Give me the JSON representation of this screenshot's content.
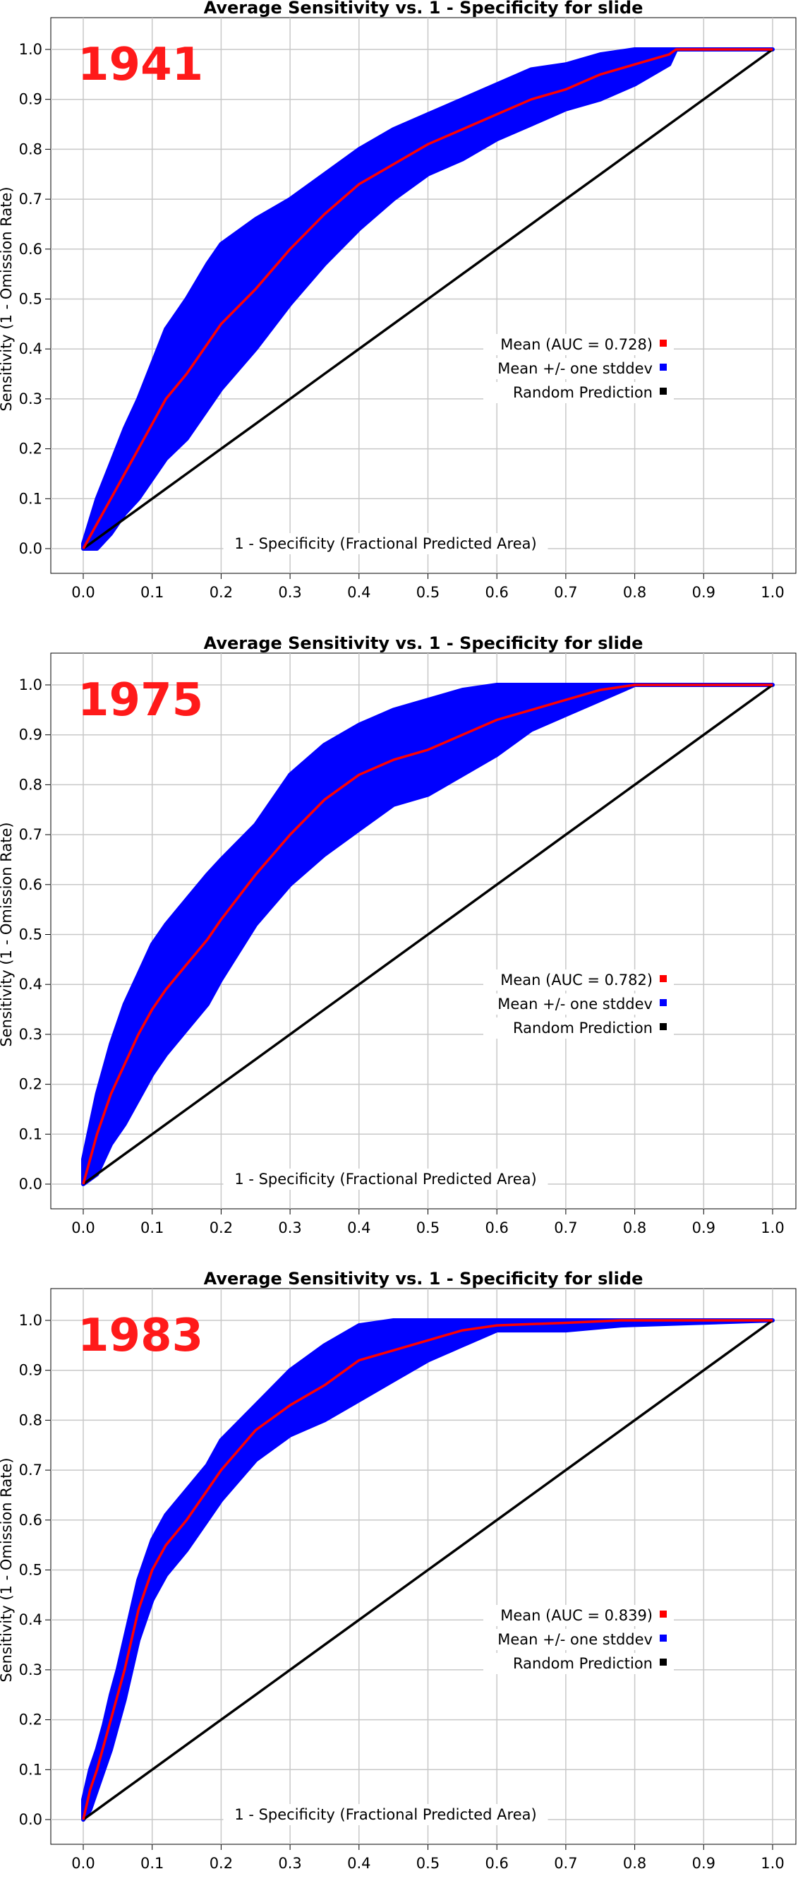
{
  "legend_colors": {
    "mean": "#ff0000",
    "band": "#0000ff",
    "random": "#000000"
  },
  "chart_data": [
    {
      "type": "line",
      "title": "Average Sensitivity vs. 1 - Specificity for slide",
      "year_label": "1941",
      "xlabel": "1 - Specificity (Fractional Predicted Area)",
      "ylabel": "Sensitivity (1 - Omission Rate)",
      "xlim": [
        0,
        1
      ],
      "ylim": [
        0,
        1
      ],
      "grid": true,
      "legend_position": "center-right",
      "x_ticks": [
        "0.0",
        "0.1",
        "0.2",
        "0.3",
        "0.4",
        "0.5",
        "0.6",
        "0.7",
        "0.8",
        "0.9",
        "1.0"
      ],
      "y_ticks": [
        "0.0",
        "0.1",
        "0.2",
        "0.3",
        "0.4",
        "0.5",
        "0.6",
        "0.7",
        "0.8",
        "0.9",
        "1.0"
      ],
      "legend": [
        "Mean (AUC = 0.728)",
        "Mean +/- one stddev",
        "Random Prediction"
      ],
      "x": [
        0,
        0.02,
        0.04,
        0.06,
        0.08,
        0.1,
        0.12,
        0.15,
        0.18,
        0.2,
        0.25,
        0.3,
        0.35,
        0.4,
        0.45,
        0.5,
        0.55,
        0.6,
        0.65,
        0.7,
        0.75,
        0.8,
        0.85,
        0.86,
        1.0
      ],
      "series": [
        {
          "values": [
            0,
            0.05,
            0.1,
            0.15,
            0.2,
            0.25,
            0.3,
            0.35,
            0.41,
            0.45,
            0.52,
            0.6,
            0.67,
            0.73,
            0.77,
            0.81,
            0.84,
            0.87,
            0.9,
            0.92,
            0.95,
            0.97,
            0.99,
            1.0,
            1.0
          ]
        },
        {
          "values": [
            0.01,
            0.1,
            0.17,
            0.24,
            0.3,
            0.37,
            0.44,
            0.5,
            0.57,
            0.61,
            0.66,
            0.7,
            0.75,
            0.8,
            0.84,
            0.87,
            0.9,
            0.93,
            0.96,
            0.97,
            0.99,
            1.0,
            1.0,
            1.0,
            1.0
          ]
        },
        {
          "values": [
            0,
            0,
            0.03,
            0.07,
            0.1,
            0.14,
            0.18,
            0.22,
            0.28,
            0.32,
            0.4,
            0.49,
            0.57,
            0.64,
            0.7,
            0.75,
            0.78,
            0.82,
            0.85,
            0.88,
            0.9,
            0.93,
            0.97,
            1.0,
            1.0
          ]
        },
        {
          "values": [
            0,
            0.02,
            0.04,
            0.06,
            0.08,
            0.1,
            0.12,
            0.15,
            0.18,
            0.2,
            0.25,
            0.3,
            0.35,
            0.4,
            0.45,
            0.5,
            0.55,
            0.6,
            0.65,
            0.7,
            0.75,
            0.8,
            0.85,
            0.86,
            1.0
          ]
        }
      ]
    },
    {
      "type": "line",
      "title": "Average Sensitivity vs. 1 - Specificity for slide",
      "year_label": "1975",
      "xlabel": "1 - Specificity (Fractional Predicted Area)",
      "ylabel": "Sensitivity (1 - Omission Rate)",
      "xlim": [
        0,
        1
      ],
      "ylim": [
        0,
        1
      ],
      "grid": true,
      "legend_position": "center-right",
      "x_ticks": [
        "0.0",
        "0.1",
        "0.2",
        "0.3",
        "0.4",
        "0.5",
        "0.6",
        "0.7",
        "0.8",
        "0.9",
        "1.0"
      ],
      "y_ticks": [
        "0.0",
        "0.1",
        "0.2",
        "0.3",
        "0.4",
        "0.5",
        "0.6",
        "0.7",
        "0.8",
        "0.9",
        "1.0"
      ],
      "legend": [
        "Mean (AUC = 0.782)",
        "Mean +/- one stddev",
        "Random Prediction"
      ],
      "x": [
        0,
        0.02,
        0.04,
        0.06,
        0.08,
        0.1,
        0.12,
        0.15,
        0.18,
        0.2,
        0.25,
        0.3,
        0.35,
        0.4,
        0.45,
        0.5,
        0.55,
        0.6,
        0.65,
        0.7,
        0.75,
        0.8,
        1.0
      ],
      "series": [
        {
          "values": [
            0,
            0.1,
            0.18,
            0.24,
            0.3,
            0.35,
            0.39,
            0.44,
            0.49,
            0.53,
            0.62,
            0.7,
            0.77,
            0.82,
            0.85,
            0.87,
            0.9,
            0.93,
            0.95,
            0.97,
            0.99,
            1.0,
            1.0
          ]
        },
        {
          "values": [
            0.05,
            0.18,
            0.28,
            0.36,
            0.42,
            0.48,
            0.52,
            0.57,
            0.62,
            0.65,
            0.72,
            0.82,
            0.88,
            0.92,
            0.95,
            0.97,
            0.99,
            1.0,
            1.0,
            1.0,
            1.0,
            1.0,
            1.0
          ]
        },
        {
          "values": [
            0,
            0.02,
            0.08,
            0.12,
            0.17,
            0.22,
            0.26,
            0.31,
            0.36,
            0.41,
            0.52,
            0.6,
            0.66,
            0.71,
            0.76,
            0.78,
            0.82,
            0.86,
            0.91,
            0.94,
            0.97,
            1.0,
            1.0
          ]
        },
        {
          "values": [
            0,
            0.02,
            0.04,
            0.06,
            0.08,
            0.1,
            0.12,
            0.15,
            0.18,
            0.2,
            0.25,
            0.3,
            0.35,
            0.4,
            0.45,
            0.5,
            0.55,
            0.6,
            0.65,
            0.7,
            0.75,
            0.8,
            1.0
          ]
        }
      ]
    },
    {
      "type": "line",
      "title": "Average Sensitivity vs. 1 - Specificity for slide",
      "year_label": "1983",
      "xlabel": "1 - Specificity (Fractional Predicted Area)",
      "ylabel": "Sensitivity (1 - Omission Rate)",
      "xlim": [
        0,
        1
      ],
      "ylim": [
        0,
        1
      ],
      "grid": true,
      "legend_position": "center-right",
      "x_ticks": [
        "0.0",
        "0.1",
        "0.2",
        "0.3",
        "0.4",
        "0.5",
        "0.6",
        "0.7",
        "0.8",
        "0.9",
        "1.0"
      ],
      "y_ticks": [
        "0.0",
        "0.1",
        "0.2",
        "0.3",
        "0.4",
        "0.5",
        "0.6",
        "0.7",
        "0.8",
        "0.9",
        "1.0"
      ],
      "legend": [
        "Mean (AUC = 0.839)",
        "Mean +/- one stddev",
        "Random Prediction"
      ],
      "x": [
        0,
        0.01,
        0.02,
        0.03,
        0.04,
        0.05,
        0.06,
        0.07,
        0.08,
        0.1,
        0.12,
        0.15,
        0.18,
        0.2,
        0.25,
        0.3,
        0.35,
        0.4,
        0.45,
        0.5,
        0.55,
        0.6,
        0.7,
        0.78,
        1.0
      ],
      "series": [
        {
          "values": [
            0,
            0.06,
            0.1,
            0.15,
            0.2,
            0.25,
            0.3,
            0.36,
            0.42,
            0.5,
            0.55,
            0.6,
            0.66,
            0.7,
            0.78,
            0.83,
            0.87,
            0.92,
            0.94,
            0.96,
            0.98,
            0.99,
            0.995,
            1.0,
            1.0
          ]
        },
        {
          "values": [
            0.04,
            0.1,
            0.14,
            0.19,
            0.25,
            0.3,
            0.36,
            0.42,
            0.48,
            0.56,
            0.61,
            0.66,
            0.71,
            0.76,
            0.83,
            0.9,
            0.95,
            0.99,
            1.0,
            1.0,
            1.0,
            1.0,
            1.0,
            1.0,
            1.0
          ]
        },
        {
          "values": [
            0,
            0.02,
            0.06,
            0.1,
            0.14,
            0.19,
            0.24,
            0.3,
            0.36,
            0.44,
            0.49,
            0.54,
            0.6,
            0.64,
            0.72,
            0.77,
            0.8,
            0.84,
            0.88,
            0.92,
            0.95,
            0.98,
            0.98,
            0.99,
            1.0
          ]
        },
        {
          "values": [
            0,
            0.01,
            0.02,
            0.03,
            0.04,
            0.05,
            0.06,
            0.07,
            0.08,
            0.1,
            0.12,
            0.15,
            0.18,
            0.2,
            0.25,
            0.3,
            0.35,
            0.4,
            0.45,
            0.5,
            0.55,
            0.6,
            0.7,
            0.78,
            1.0
          ]
        }
      ]
    }
  ]
}
